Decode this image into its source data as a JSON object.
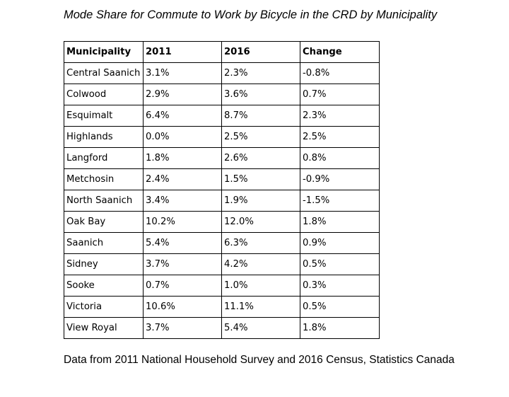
{
  "title": "Mode Share for Commute to Work by Bicycle in the CRD by Municipality",
  "table": {
    "headers": [
      "Municipality",
      "2011",
      "2016",
      "Change"
    ],
    "rows": [
      [
        "Central Saanich",
        "3.1%",
        "2.3%",
        "-0.8%"
      ],
      [
        "Colwood",
        "2.9%",
        "3.6%",
        "0.7%"
      ],
      [
        "Esquimalt",
        "6.4%",
        "8.7%",
        "2.3%"
      ],
      [
        "Highlands",
        "0.0%",
        "2.5%",
        "2.5%"
      ],
      [
        "Langford",
        "1.8%",
        "2.6%",
        "0.8%"
      ],
      [
        "Metchosin",
        "2.4%",
        "1.5%",
        "-0.9%"
      ],
      [
        "North Saanich",
        "3.4%",
        "1.9%",
        "-1.5%"
      ],
      [
        "Oak Bay",
        "10.2%",
        "12.0%",
        "1.8%"
      ],
      [
        "Saanich",
        "5.4%",
        "6.3%",
        "0.9%"
      ],
      [
        "Sidney",
        "3.7%",
        "4.2%",
        "0.5%"
      ],
      [
        "Sooke",
        "0.7%",
        "1.0%",
        "0.3%"
      ],
      [
        "Victoria",
        "10.6%",
        "11.1%",
        "0.5%"
      ],
      [
        "View Royal",
        "3.7%",
        "5.4%",
        "1.8%"
      ]
    ]
  },
  "source": "Data from 2011 National Household Survey and 2016 Census, Statistics Canada"
}
